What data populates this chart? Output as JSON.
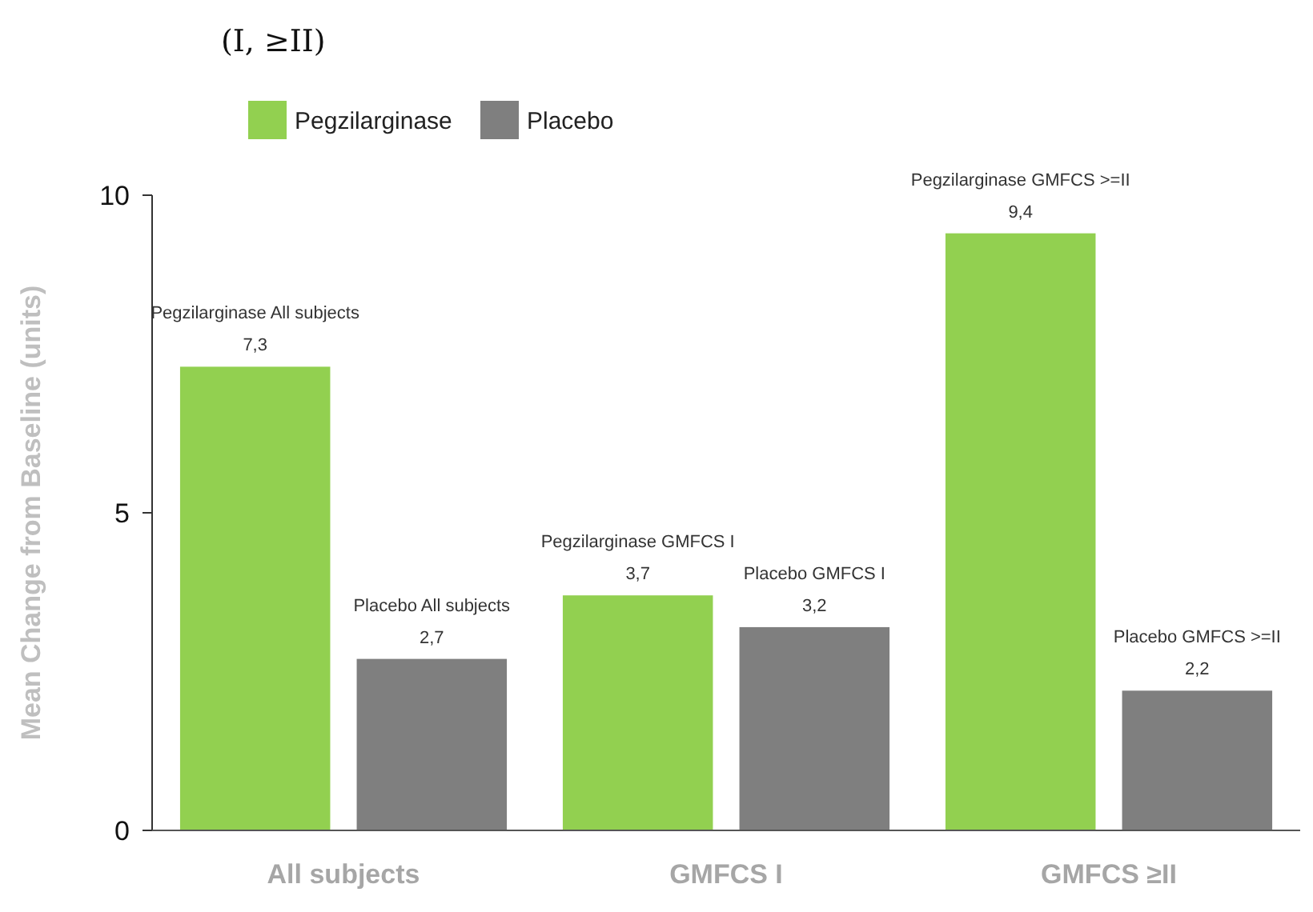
{
  "chart_data": {
    "type": "bar",
    "title": "(I, ≥II)",
    "ylabel": "Mean Change from Baseline (units)",
    "categories": [
      "All subjects",
      "GMFCS I",
      "GMFCS ≥II"
    ],
    "series": [
      {
        "name": "Pegzilarginase",
        "color": "#92d050",
        "values": [
          7.3,
          3.7,
          9.4
        ],
        "value_labels": [
          "7,3",
          "3,7",
          "9,4"
        ]
      },
      {
        "name": "Placebo",
        "color": "#7f7f7f",
        "values": [
          2.7,
          3.2,
          2.2
        ],
        "value_labels": [
          "2,7",
          "3,2",
          "2,2"
        ]
      }
    ],
    "annotations": [
      "Pegzilarginase All subjects",
      "Pegzilarginase GMFCS I",
      "Pegzilarginase GMFCS >=II",
      "Placebo All subjects",
      "Placebo GMFCS I",
      "Placebo GMFCS >=II"
    ],
    "ylim": [
      0,
      10
    ],
    "yticks": [
      0,
      5,
      10
    ],
    "grid": false,
    "legend": "top left"
  }
}
